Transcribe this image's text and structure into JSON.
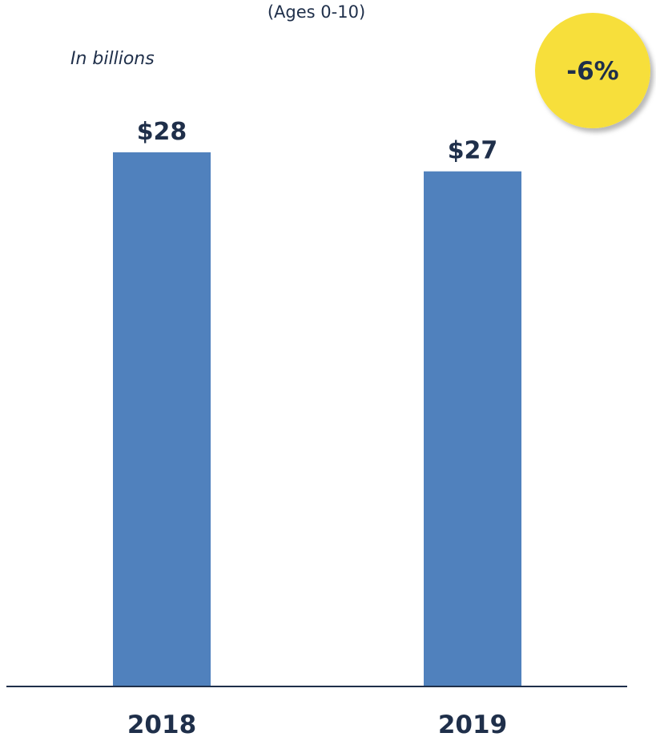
{
  "chart_data": {
    "type": "bar",
    "subtitle": "(Ages 0-10)",
    "unit_note": "In billions",
    "categories": [
      "2018",
      "2019"
    ],
    "values": [
      28,
      27
    ],
    "value_labels": [
      "$28",
      "$27"
    ],
    "change_badge": "-6%",
    "colors": {
      "bar": "#5081bd",
      "text": "#1f2f4a",
      "axis": "#1f2f4a",
      "badge": "#f7df3a"
    },
    "grid": false,
    "legend": "none"
  }
}
